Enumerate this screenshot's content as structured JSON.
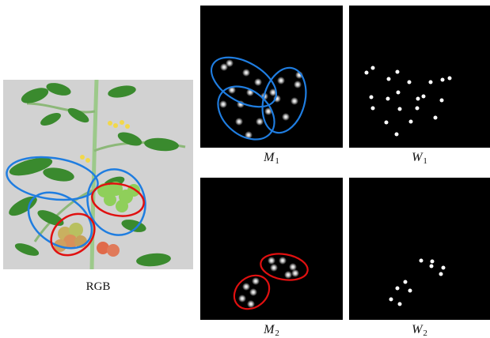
{
  "figure": {
    "rgb_caption": "RGB",
    "m1_caption": {
      "base": "M",
      "sub": "1"
    },
    "w1_caption": {
      "base": "W",
      "sub": "1"
    },
    "m2_caption": {
      "base": "M",
      "sub": "2"
    },
    "w2_caption": {
      "base": "W",
      "sub": "2"
    }
  },
  "colors": {
    "blue_ellipse": "#1f7de0",
    "red_ellipse": "#e01010",
    "map_background": "#000000",
    "photo_background": "#d2d2d2",
    "leaf": "#3a8a2e",
    "tomato_green": "#8fcf5a",
    "tomato_red": "#e06a4a"
  }
}
